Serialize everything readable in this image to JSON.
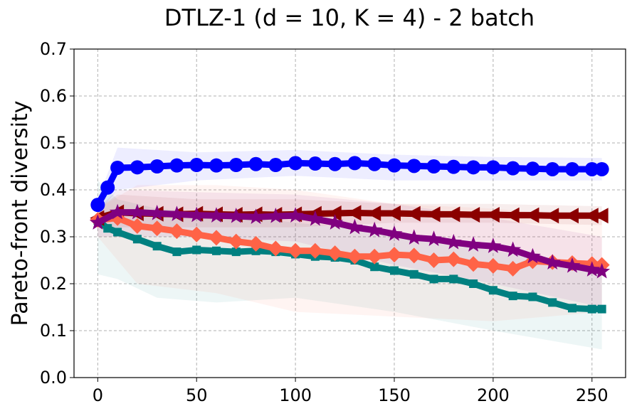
{
  "chart_data": {
    "type": "line",
    "title": "DTLZ-1 (d = 10, K = 4) - 2 batch",
    "xlabel": "",
    "ylabel": "Pareto-front diversity",
    "xlim": [
      -12,
      267
    ],
    "ylim": [
      0.0,
      0.7
    ],
    "xticks": [
      0,
      50,
      100,
      150,
      200,
      250
    ],
    "xtick_labels": [
      "0",
      "50",
      "100",
      "150",
      "200",
      "250"
    ],
    "yticks": [
      0.0,
      0.1,
      0.2,
      0.3,
      0.4,
      0.5,
      0.6,
      0.7
    ],
    "ytick_labels": [
      "0.0",
      "0.1",
      "0.2",
      "0.3",
      "0.4",
      "0.5",
      "0.6",
      "0.7"
    ],
    "grid": true,
    "series": [
      {
        "name": "teal",
        "color": "#008080",
        "marker": "square",
        "points": [
          [
            0,
            0.335
          ],
          [
            5,
            0.318
          ],
          [
            10,
            0.31
          ],
          [
            20,
            0.295
          ],
          [
            30,
            0.28
          ],
          [
            40,
            0.268
          ],
          [
            50,
            0.272
          ],
          [
            60,
            0.27
          ],
          [
            70,
            0.268
          ],
          [
            80,
            0.27
          ],
          [
            90,
            0.268
          ],
          [
            100,
            0.263
          ],
          [
            110,
            0.258
          ],
          [
            120,
            0.256
          ],
          [
            130,
            0.25
          ],
          [
            140,
            0.236
          ],
          [
            150,
            0.228
          ],
          [
            160,
            0.22
          ],
          [
            170,
            0.21
          ],
          [
            180,
            0.21
          ],
          [
            190,
            0.2
          ],
          [
            200,
            0.186
          ],
          [
            210,
            0.174
          ],
          [
            220,
            0.172
          ],
          [
            230,
            0.16
          ],
          [
            240,
            0.148
          ],
          [
            250,
            0.146
          ],
          [
            255,
            0.146
          ]
        ],
        "band_upper": [
          [
            0,
            0.42
          ],
          [
            10,
            0.38
          ],
          [
            30,
            0.36
          ],
          [
            60,
            0.35
          ],
          [
            100,
            0.33
          ],
          [
            150,
            0.31
          ],
          [
            200,
            0.27
          ],
          [
            255,
            0.24
          ]
        ],
        "band_lower": [
          [
            0,
            0.22
          ],
          [
            10,
            0.21
          ],
          [
            30,
            0.17
          ],
          [
            60,
            0.16
          ],
          [
            100,
            0.17
          ],
          [
            150,
            0.14
          ],
          [
            200,
            0.1
          ],
          [
            255,
            0.06
          ]
        ]
      },
      {
        "name": "blue",
        "color": "#0000ff",
        "marker": "circle",
        "points": [
          [
            0,
            0.368
          ],
          [
            5,
            0.405
          ],
          [
            10,
            0.447
          ],
          [
            20,
            0.448
          ],
          [
            30,
            0.45
          ],
          [
            40,
            0.452
          ],
          [
            50,
            0.453
          ],
          [
            60,
            0.452
          ],
          [
            70,
            0.453
          ],
          [
            80,
            0.455
          ],
          [
            90,
            0.453
          ],
          [
            100,
            0.457
          ],
          [
            110,
            0.456
          ],
          [
            120,
            0.455
          ],
          [
            130,
            0.457
          ],
          [
            140,
            0.455
          ],
          [
            150,
            0.452
          ],
          [
            160,
            0.451
          ],
          [
            170,
            0.45
          ],
          [
            180,
            0.449
          ],
          [
            190,
            0.448
          ],
          [
            200,
            0.448
          ],
          [
            210,
            0.446
          ],
          [
            220,
            0.445
          ],
          [
            230,
            0.444
          ],
          [
            240,
            0.444
          ],
          [
            250,
            0.444
          ],
          [
            255,
            0.444
          ]
        ],
        "band_upper": [
          [
            0,
            0.38
          ],
          [
            10,
            0.49
          ],
          [
            50,
            0.48
          ],
          [
            100,
            0.485
          ],
          [
            150,
            0.475
          ],
          [
            200,
            0.47
          ],
          [
            255,
            0.468
          ]
        ],
        "band_lower": [
          [
            0,
            0.35
          ],
          [
            10,
            0.4
          ],
          [
            50,
            0.42
          ],
          [
            100,
            0.43
          ],
          [
            150,
            0.42
          ],
          [
            200,
            0.42
          ],
          [
            255,
            0.42
          ]
        ]
      },
      {
        "name": "darkred",
        "color": "#8b0000",
        "marker": "triangle-left",
        "points": [
          [
            0,
            0.34
          ],
          [
            10,
            0.352
          ],
          [
            20,
            0.35
          ],
          [
            30,
            0.349
          ],
          [
            40,
            0.348
          ],
          [
            50,
            0.349
          ],
          [
            60,
            0.348
          ],
          [
            70,
            0.347
          ],
          [
            80,
            0.348
          ],
          [
            90,
            0.347
          ],
          [
            100,
            0.348
          ],
          [
            110,
            0.349
          ],
          [
            120,
            0.35
          ],
          [
            130,
            0.351
          ],
          [
            140,
            0.35
          ],
          [
            150,
            0.35
          ],
          [
            160,
            0.349
          ],
          [
            170,
            0.348
          ],
          [
            180,
            0.348
          ],
          [
            190,
            0.347
          ],
          [
            200,
            0.347
          ],
          [
            210,
            0.346
          ],
          [
            220,
            0.346
          ],
          [
            230,
            0.345
          ],
          [
            240,
            0.345
          ],
          [
            250,
            0.345
          ],
          [
            255,
            0.345
          ]
        ],
        "band_upper": [
          [
            0,
            0.36
          ],
          [
            10,
            0.39
          ],
          [
            50,
            0.38
          ],
          [
            100,
            0.38
          ],
          [
            150,
            0.37
          ],
          [
            200,
            0.37
          ],
          [
            255,
            0.365
          ]
        ],
        "band_lower": [
          [
            0,
            0.32
          ],
          [
            10,
            0.32
          ],
          [
            50,
            0.32
          ],
          [
            100,
            0.32
          ],
          [
            150,
            0.33
          ],
          [
            200,
            0.33
          ],
          [
            255,
            0.325
          ]
        ]
      },
      {
        "name": "tomato",
        "color": "#ff6347",
        "marker": "diamond",
        "points": [
          [
            0,
            0.336
          ],
          [
            10,
            0.34
          ],
          [
            20,
            0.323
          ],
          [
            30,
            0.318
          ],
          [
            40,
            0.312
          ],
          [
            50,
            0.305
          ],
          [
            60,
            0.298
          ],
          [
            70,
            0.29
          ],
          [
            80,
            0.285
          ],
          [
            90,
            0.275
          ],
          [
            100,
            0.27
          ],
          [
            110,
            0.27
          ],
          [
            120,
            0.265
          ],
          [
            130,
            0.258
          ],
          [
            140,
            0.258
          ],
          [
            150,
            0.262
          ],
          [
            160,
            0.26
          ],
          [
            170,
            0.25
          ],
          [
            180,
            0.252
          ],
          [
            190,
            0.242
          ],
          [
            200,
            0.238
          ],
          [
            210,
            0.232
          ],
          [
            220,
            0.248
          ],
          [
            230,
            0.246
          ],
          [
            240,
            0.244
          ],
          [
            250,
            0.242
          ],
          [
            255,
            0.24
          ]
        ],
        "band_upper": [
          [
            0,
            0.36
          ],
          [
            20,
            0.41
          ],
          [
            60,
            0.41
          ],
          [
            100,
            0.4
          ],
          [
            150,
            0.37
          ],
          [
            200,
            0.36
          ],
          [
            255,
            0.34
          ]
        ],
        "band_lower": [
          [
            0,
            0.3
          ],
          [
            20,
            0.2
          ],
          [
            60,
            0.18
          ],
          [
            100,
            0.14
          ],
          [
            150,
            0.13
          ],
          [
            200,
            0.12
          ],
          [
            255,
            0.14
          ]
        ]
      },
      {
        "name": "purple",
        "color": "#800080",
        "marker": "star",
        "points": [
          [
            0,
            0.33
          ],
          [
            10,
            0.352
          ],
          [
            20,
            0.352
          ],
          [
            30,
            0.35
          ],
          [
            40,
            0.348
          ],
          [
            50,
            0.346
          ],
          [
            60,
            0.345
          ],
          [
            70,
            0.344
          ],
          [
            80,
            0.342
          ],
          [
            90,
            0.344
          ],
          [
            100,
            0.345
          ],
          [
            110,
            0.338
          ],
          [
            120,
            0.33
          ],
          [
            130,
            0.32
          ],
          [
            140,
            0.314
          ],
          [
            150,
            0.306
          ],
          [
            160,
            0.298
          ],
          [
            170,
            0.295
          ],
          [
            180,
            0.288
          ],
          [
            190,
            0.283
          ],
          [
            200,
            0.28
          ],
          [
            210,
            0.272
          ],
          [
            220,
            0.258
          ],
          [
            230,
            0.245
          ],
          [
            240,
            0.238
          ],
          [
            250,
            0.23
          ],
          [
            255,
            0.226
          ]
        ],
        "band_upper": [
          [
            0,
            0.36
          ],
          [
            10,
            0.4
          ],
          [
            50,
            0.395
          ],
          [
            100,
            0.39
          ],
          [
            150,
            0.37
          ],
          [
            200,
            0.34
          ],
          [
            255,
            0.3
          ]
        ],
        "band_lower": [
          [
            0,
            0.3
          ],
          [
            10,
            0.3
          ],
          [
            50,
            0.3
          ],
          [
            100,
            0.29
          ],
          [
            150,
            0.24
          ],
          [
            200,
            0.2
          ],
          [
            255,
            0.15
          ]
        ]
      }
    ]
  }
}
